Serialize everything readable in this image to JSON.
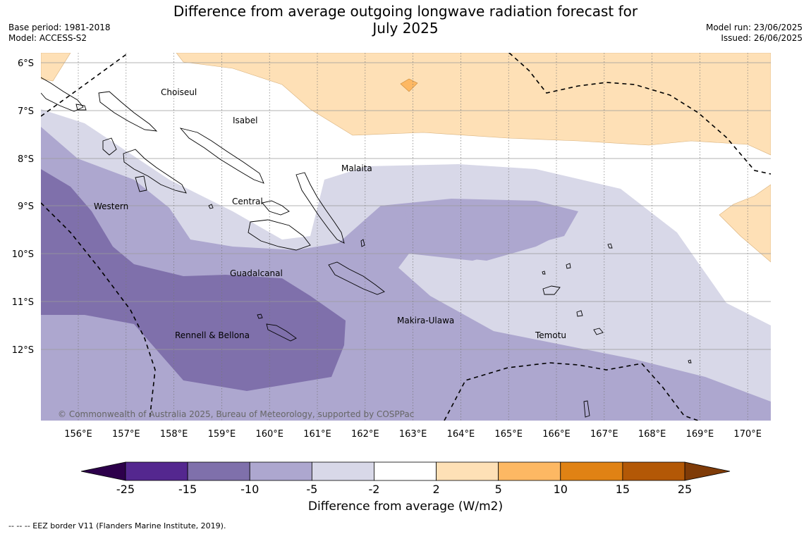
{
  "title_line1": "Difference from average outgoing longwave radiation forecast for",
  "title_line2": "July 2025",
  "base_period": "Base period: 1981-2018",
  "model": "Model: ACCESS-S2",
  "model_run": "Model run: 23/06/2025",
  "issued": "Issued: 26/06/2025",
  "copyright": "© Commonwealth of Australia 2025, Bureau of Meteorology, supported by COSPPac",
  "colorbar": {
    "title": "Difference from average (W/m2)",
    "ticks": [
      "-25",
      "-15",
      "-10",
      "-5",
      "-2",
      "2",
      "5",
      "10",
      "15",
      "25"
    ],
    "colors": [
      "#54278f",
      "#7f70ab",
      "#ada7cf",
      "#d8d8e8",
      "#ffffff",
      "#fee0b6",
      "#fdb863",
      "#e08214",
      "#b35806"
    ],
    "under_color": "#2d004b",
    "over_color": "#7f3b08"
  },
  "eez_note": "-- -- -- EEZ border V11 (Flanders Marine Institute, 2019).",
  "lat_labels": [
    "6°S",
    "7°S",
    "8°S",
    "9°S",
    "10°S",
    "11°S",
    "12°S"
  ],
  "lon_labels": [
    "156°E",
    "157°E",
    "158°E",
    "159°E",
    "160°E",
    "161°E",
    "162°E",
    "163°E",
    "164°E",
    "165°E",
    "166°E",
    "167°E",
    "168°E",
    "169°E",
    "170°E"
  ],
  "places": [
    "Choiseul",
    "Isabel",
    "Malaita",
    "Western",
    "Central",
    "Guadalcanal",
    "Makira-Ulawa",
    "Rennell & Bellona",
    "Temotu"
  ]
}
